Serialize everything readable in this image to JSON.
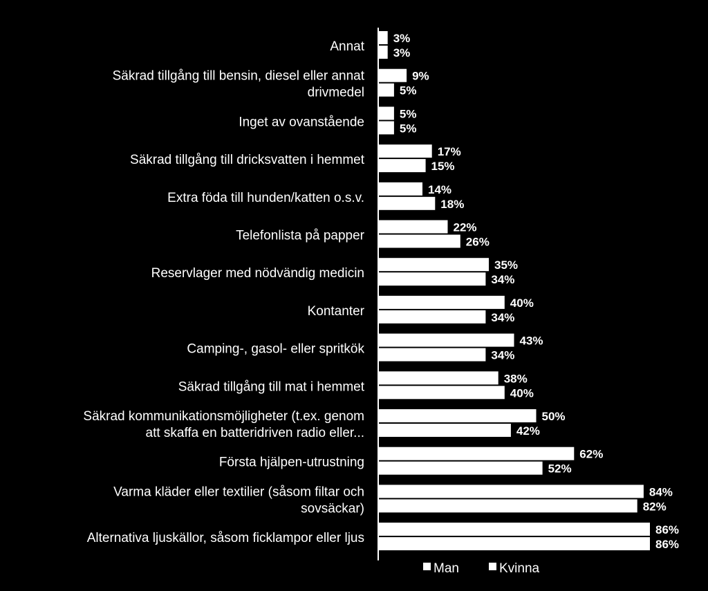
{
  "chart_data": {
    "type": "bar",
    "orientation": "horizontal",
    "title": "",
    "xlabel": "",
    "ylabel": "",
    "xlim": [
      0,
      100
    ],
    "grid": false,
    "legend_position": "bottom",
    "value_suffix": "%",
    "categories": [
      [
        "Annat"
      ],
      [
        "Säkrad tillgång till bensin, diesel eller annat",
        "drivmedel"
      ],
      [
        "Inget av ovanstående"
      ],
      [
        "Säkrad tillgång till dricksvatten i hemmet"
      ],
      [
        "Extra föda till hunden/katten o.s.v."
      ],
      [
        "Telefonlista på papper"
      ],
      [
        "Reservlager med nödvändig medicin"
      ],
      [
        "Kontanter"
      ],
      [
        "Camping-, gasol- eller spritkök"
      ],
      [
        "Säkrad tillgång till mat i hemmet"
      ],
      [
        "Säkrad kommunikationsmöjligheter (t.ex. genom",
        "att skaffa en batteridriven radio eller..."
      ],
      [
        "Första hjälpen-utrustning"
      ],
      [
        "Varma kläder eller textilier (såsom filtar och",
        "sovsäckar)"
      ],
      [
        "Alternativa ljuskällor, såsom ficklampor eller ljus"
      ]
    ],
    "series": [
      {
        "name": "Man",
        "color": "#ffffff",
        "values": [
          3,
          9,
          5,
          17,
          14,
          22,
          35,
          40,
          43,
          38,
          50,
          62,
          84,
          86
        ]
      },
      {
        "name": "Kvinna",
        "color": "#ffffff",
        "values": [
          3,
          5,
          5,
          15,
          18,
          26,
          34,
          34,
          34,
          40,
          42,
          52,
          82,
          86
        ]
      }
    ],
    "colors": {
      "background": "#000000",
      "bar": "#ffffff",
      "text": "#ffffff"
    }
  }
}
